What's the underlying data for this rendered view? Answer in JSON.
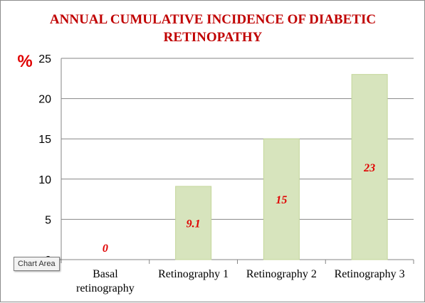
{
  "chart_data": {
    "type": "bar",
    "title_lines": [
      "ANNUAL CUMULATIVE INCIDENCE OF DIABETIC",
      "RETINOPATHY"
    ],
    "ylabel": "%",
    "xlabel": "",
    "categories": [
      [
        "Basal",
        "retinography"
      ],
      [
        "Retinography 1"
      ],
      [
        "Retinography 2"
      ],
      [
        "Retinography 3"
      ]
    ],
    "values": [
      0,
      9.1,
      15,
      23
    ],
    "data_labels": [
      "0",
      "9.1",
      "15",
      "23"
    ],
    "ylim": [
      0,
      25
    ],
    "y_ticks": [
      0,
      5,
      10,
      15,
      20,
      25
    ],
    "grid": true,
    "legend": "none",
    "bar_color": "#d7e4bd",
    "bar_edge_color": "#c4d79b",
    "grid_color": "#868686",
    "title_color": "#c00000",
    "label_color": "#e00000"
  },
  "tooltip": {
    "label": "Chart Area"
  }
}
